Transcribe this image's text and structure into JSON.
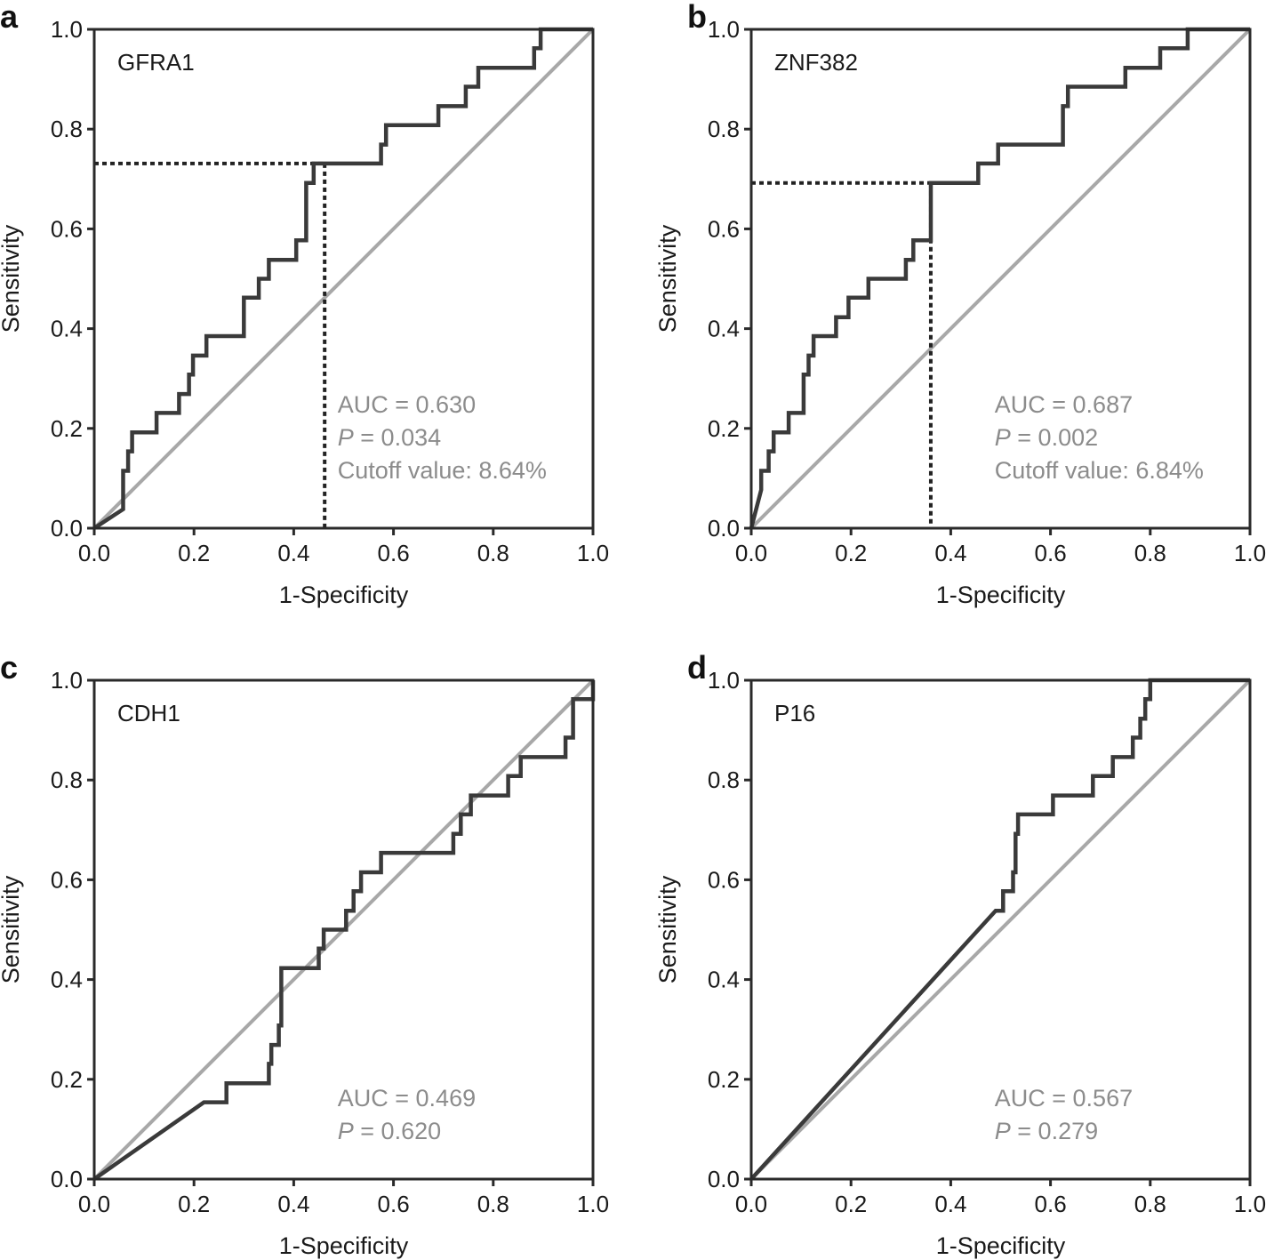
{
  "chart_data": [
    {
      "panel": "a",
      "type": "line",
      "title": "GFRA1",
      "xlabel": "1-Specificity",
      "ylabel": "Sensitivity",
      "xlim": [
        0,
        1
      ],
      "ylim": [
        0,
        1
      ],
      "xticks": [
        "0.0",
        "0.2",
        "0.4",
        "0.6",
        "0.8",
        "1.0"
      ],
      "yticks": [
        "0.0",
        "0.2",
        "0.4",
        "0.6",
        "0.8",
        "1.0"
      ],
      "stats": {
        "auc": "AUC = 0.630",
        "p_symbol": "P",
        "p_value": " = 0.034",
        "cutoff": "Cutoff value: 8.64%"
      },
      "cutoff_point": [
        0.462,
        0.731
      ],
      "reference_line": [
        [
          0,
          0
        ],
        [
          1,
          1
        ]
      ],
      "series": [
        {
          "name": "ROC",
          "x": [
            0,
            0.058,
            0.058,
            0.068,
            0.068,
            0.076,
            0.076,
            0.125,
            0.125,
            0.17,
            0.17,
            0.19,
            0.19,
            0.198,
            0.198,
            0.225,
            0.225,
            0.3,
            0.3,
            0.33,
            0.33,
            0.35,
            0.35,
            0.405,
            0.405,
            0.425,
            0.425,
            0.44,
            0.44,
            0.462,
            0.462,
            0.575,
            0.575,
            0.585,
            0.585,
            0.69,
            0.69,
            0.745,
            0.745,
            0.77,
            0.77,
            0.87,
            0.87,
            0.882,
            0.882,
            0.895,
            0.895,
            1.0
          ],
          "y": [
            0,
            0.038,
            0.115,
            0.115,
            0.154,
            0.154,
            0.192,
            0.192,
            0.231,
            0.231,
            0.269,
            0.269,
            0.308,
            0.308,
            0.346,
            0.346,
            0.385,
            0.385,
            0.462,
            0.462,
            0.5,
            0.5,
            0.538,
            0.538,
            0.577,
            0.577,
            0.692,
            0.692,
            0.731,
            0.731,
            0.731,
            0.731,
            0.769,
            0.769,
            0.808,
            0.808,
            0.846,
            0.846,
            0.885,
            0.885,
            0.923,
            0.923,
            0.923,
            0.923,
            0.962,
            0.962,
            1.0,
            1.0
          ]
        }
      ]
    },
    {
      "panel": "b",
      "type": "line",
      "title": "ZNF382",
      "xlabel": "1-Specificity",
      "ylabel": "Sensitivity",
      "xlim": [
        0,
        1
      ],
      "ylim": [
        0,
        1
      ],
      "xticks": [
        "0.0",
        "0.2",
        "0.4",
        "0.6",
        "0.8",
        "1.0"
      ],
      "yticks": [
        "0.0",
        "0.2",
        "0.4",
        "0.6",
        "0.8",
        "1.0"
      ],
      "stats": {
        "auc": "AUC = 0.687",
        "p_symbol": "P",
        "p_value": " = 0.002",
        "cutoff": "Cutoff value: 6.84%"
      },
      "cutoff_point": [
        0.36,
        0.692
      ],
      "reference_line": [
        [
          0,
          0
        ],
        [
          1,
          1
        ]
      ],
      "series": [
        {
          "name": "ROC",
          "x": [
            0,
            0.02,
            0.02,
            0.035,
            0.035,
            0.045,
            0.045,
            0.075,
            0.075,
            0.105,
            0.105,
            0.115,
            0.115,
            0.125,
            0.125,
            0.13,
            0.13,
            0.17,
            0.17,
            0.195,
            0.195,
            0.21,
            0.21,
            0.235,
            0.235,
            0.31,
            0.31,
            0.325,
            0.325,
            0.345,
            0.345,
            0.36,
            0.36,
            0.455,
            0.455,
            0.495,
            0.495,
            0.625,
            0.625,
            0.635,
            0.635,
            0.75,
            0.75,
            0.82,
            0.82,
            0.875,
            0.875,
            1.0
          ],
          "y": [
            0,
            0.077,
            0.115,
            0.115,
            0.154,
            0.154,
            0.192,
            0.192,
            0.231,
            0.231,
            0.308,
            0.308,
            0.346,
            0.346,
            0.385,
            0.385,
            0.385,
            0.385,
            0.423,
            0.423,
            0.462,
            0.462,
            0.462,
            0.462,
            0.5,
            0.5,
            0.538,
            0.538,
            0.577,
            0.577,
            0.577,
            0.577,
            0.692,
            0.692,
            0.731,
            0.731,
            0.769,
            0.769,
            0.846,
            0.846,
            0.885,
            0.885,
            0.923,
            0.923,
            0.962,
            0.962,
            1.0,
            1.0
          ]
        }
      ]
    },
    {
      "panel": "c",
      "type": "line",
      "title": "CDH1",
      "xlabel": "1-Specificity",
      "ylabel": "Sensitivity",
      "xlim": [
        0,
        1
      ],
      "ylim": [
        0,
        1
      ],
      "xticks": [
        "0.0",
        "0.2",
        "0.4",
        "0.6",
        "0.8",
        "1.0"
      ],
      "yticks": [
        "0.0",
        "0.2",
        "0.4",
        "0.6",
        "0.8",
        "1.0"
      ],
      "stats": {
        "auc": "AUC = 0.469",
        "p_symbol": "P",
        "p_value": " = 0.620",
        "cutoff": ""
      },
      "cutoff_point": null,
      "reference_line": [
        [
          0,
          0
        ],
        [
          1,
          1
        ]
      ],
      "series": [
        {
          "name": "ROC",
          "x": [
            0,
            0.22,
            0.265,
            0.265,
            0.35,
            0.35,
            0.355,
            0.355,
            0.37,
            0.37,
            0.375,
            0.375,
            0.45,
            0.45,
            0.46,
            0.46,
            0.505,
            0.505,
            0.52,
            0.52,
            0.535,
            0.535,
            0.55,
            0.55,
            0.575,
            0.575,
            0.72,
            0.72,
            0.735,
            0.735,
            0.755,
            0.755,
            0.83,
            0.83,
            0.855,
            0.855,
            0.945,
            0.945,
            0.96,
            0.96,
            1.0,
            1.0
          ],
          "y": [
            0,
            0.154,
            0.154,
            0.192,
            0.192,
            0.231,
            0.231,
            0.269,
            0.269,
            0.308,
            0.308,
            0.423,
            0.423,
            0.462,
            0.462,
            0.5,
            0.5,
            0.538,
            0.538,
            0.577,
            0.577,
            0.615,
            0.615,
            0.615,
            0.615,
            0.654,
            0.654,
            0.692,
            0.692,
            0.731,
            0.731,
            0.769,
            0.769,
            0.808,
            0.808,
            0.846,
            0.846,
            0.885,
            0.885,
            0.962,
            0.962,
            1.0
          ]
        }
      ]
    },
    {
      "panel": "d",
      "type": "line",
      "title": "P16",
      "xlabel": "1-Specificity",
      "ylabel": "Sensitivity",
      "xlim": [
        0,
        1
      ],
      "ylim": [
        0,
        1
      ],
      "xticks": [
        "0.0",
        "0.2",
        "0.4",
        "0.6",
        "0.8",
        "1.0"
      ],
      "yticks": [
        "0.0",
        "0.2",
        "0.4",
        "0.6",
        "0.8",
        "1.0"
      ],
      "stats": {
        "auc": "AUC = 0.567",
        "p_symbol": "P",
        "p_value": " = 0.279",
        "cutoff": ""
      },
      "cutoff_point": null,
      "reference_line": [
        [
          0,
          0
        ],
        [
          1,
          1
        ]
      ],
      "series": [
        {
          "name": "ROC",
          "x": [
            0,
            0.49,
            0.505,
            0.505,
            0.525,
            0.525,
            0.53,
            0.53,
            0.535,
            0.535,
            0.545,
            0.545,
            0.605,
            0.605,
            0.685,
            0.685,
            0.725,
            0.725,
            0.765,
            0.765,
            0.78,
            0.78,
            0.79,
            0.79,
            0.8,
            0.8,
            0.81,
            0.81,
            1.0
          ],
          "y": [
            0,
            0.538,
            0.538,
            0.577,
            0.577,
            0.615,
            0.615,
            0.692,
            0.692,
            0.731,
            0.731,
            0.731,
            0.731,
            0.769,
            0.769,
            0.808,
            0.808,
            0.846,
            0.846,
            0.885,
            0.885,
            0.923,
            0.923,
            0.962,
            0.962,
            1.0,
            1.0,
            1.0,
            1.0
          ]
        }
      ]
    }
  ]
}
